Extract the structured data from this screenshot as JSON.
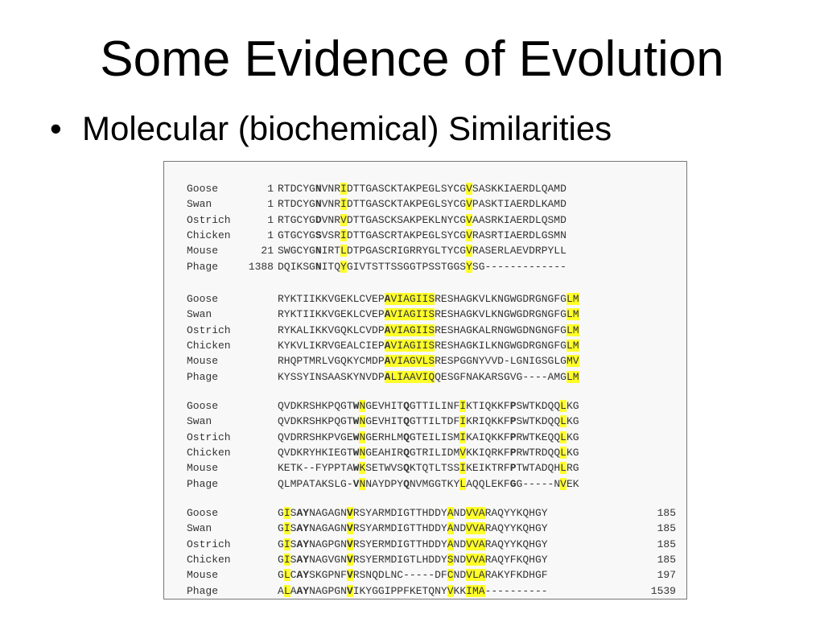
{
  "slide": {
    "title": "Some Evidence of Evolution",
    "bullet": "Molecular (biochemical) Similarities",
    "bullet_symbol": "•"
  },
  "alignment": {
    "highlight_color": "#ffff2a",
    "blocks": [
      [
        {
          "name": "Goose",
          "start": "1",
          "seq": "RTDCYGNVNRIDTTGASCKTAKPEGLSYCGVSASKKIAERDLQAMD"
        },
        {
          "name": "Swan",
          "start": "1",
          "seq": "RTDCYGNVNRIDTTGASCKTAKPEGLSYCGVPASKTIAERDLKAMD"
        },
        {
          "name": "Ostrich",
          "start": "1",
          "seq": "RTGCYGDVNRVDTTGASCKSAKPEKLNYCGVAASRKIAERDLQSMD"
        },
        {
          "name": "Chicken",
          "start": "1",
          "seq": "GTGCYGSVSRIDTTGASCRTAKPEGLSYCGVRASRTIAERDLGSMN"
        },
        {
          "name": "Mouse",
          "start": "21",
          "seq": "SWGCYGNIRTLDTPGASCRIGRRYGLTYCGVRASERLAEVDRPYLL"
        },
        {
          "name": "Phage",
          "start": "1388",
          "seq": "DQIKSGNITQYGIVTSTTSSGGTPSSTGGSYSG-------------"
        }
      ],
      [
        {
          "name": "Goose",
          "start": "",
          "seq": "RYKTIIKKVGEKLCVEPAVIAGIISRESHAGKVLKNGWGDRGNGFGLM"
        },
        {
          "name": "Swan",
          "start": "",
          "seq": "RYKTIIKKVGEKLCVEPAVIAGIISRESHAGKVLKNGWGDRGNGFGLM"
        },
        {
          "name": "Ostrich",
          "start": "",
          "seq": "RYKALIKKVGQKLCVDPAVIAGIISRESHAGKALRNGWGDNGNGFGLM"
        },
        {
          "name": "Chicken",
          "start": "",
          "seq": "KYKVLIKRVGEALCIEPAVIAGIISRESHAGKILKNGWGDRGNGFGLM"
        },
        {
          "name": "Mouse",
          "start": "",
          "seq": "RHQPTMRLVGQKYCMDPAVIAGVLSRESPGGNYVVD-LGNIGSGLGMV"
        },
        {
          "name": "Phage",
          "start": "",
          "seq": "KYSSYINSAASKYNVDPALIAAVIQQESGFNAKARSGVG----AMGLM"
        }
      ],
      [
        {
          "name": "Goose",
          "start": "",
          "seq": "QVDKRSHKPQGTWNGEVHITQGTTILINFIKTIQKKFPSWTKDQQLKG"
        },
        {
          "name": "Swan",
          "start": "",
          "seq": "QVDKRSHKPQGTWNGEVHITQGTTILTDFIKRIQKKFPSWTKDQQLKG"
        },
        {
          "name": "Ostrich",
          "start": "",
          "seq": "QVDRRSHKPVGEWNGERHLMQGTEILISMIKAIQKKFPRWTKEQQLKG"
        },
        {
          "name": "Chicken",
          "start": "",
          "seq": "QVDKRYHKIEGTWNGEAHIRQGTRILIDMVKKIQRKFPRWTRDQQLKG"
        },
        {
          "name": "Mouse",
          "start": "",
          "seq": "KETK--FYPPTAWKSETWVSQKTQTLTSSIKEIKTRFPTWTADQHLRG"
        },
        {
          "name": "Phage",
          "start": "",
          "seq": "QLMPATAKSLG-VNNAYDPYQNVMGGTKYLAQQLEKFGG-----NVEK"
        }
      ],
      [
        {
          "name": "Goose",
          "start": "",
          "seq": "GISAYNAGAGNVRSYARMDIGTTHDDYANDVVARAQYYKQHGY",
          "end": "185"
        },
        {
          "name": "Swan",
          "start": "",
          "seq": "GISAYNAGAGNVRSYARMDIGTTHDDYANDVVARAQYYKQHGY",
          "end": "185"
        },
        {
          "name": "Ostrich",
          "start": "",
          "seq": "GISAYNAGPGNVRSYERMDIGTTHDDYANDVVARAQYYKQHGY",
          "end": "185"
        },
        {
          "name": "Chicken",
          "start": "",
          "seq": "GISAYNAGVGNVRSYERMDIGTLHDDYSNDVVARAQYFKQHGY",
          "end": "185"
        },
        {
          "name": "Mouse",
          "start": "",
          "seq": "GLCAYSKGPNFVRSNQDLNC-----DFCNDVLARAKYFKDHGF",
          "end": "197"
        },
        {
          "name": "Phage",
          "start": "",
          "seq": "ALAAYNAGPGNVIKYGGIPPFKETQNYVKKIMA----------",
          "end": "1539"
        }
      ]
    ],
    "highlight_columns": [
      [
        10,
        30
      ],
      [
        17,
        18,
        19,
        20,
        21,
        22,
        23,
        24,
        46,
        47
      ],
      [
        13,
        29,
        45
      ],
      [
        1,
        11,
        27,
        30,
        31,
        32
      ]
    ],
    "bold_columns": [
      [
        6
      ],
      [
        17
      ],
      [
        12,
        20,
        37
      ],
      [
        3,
        4,
        11
      ]
    ]
  }
}
